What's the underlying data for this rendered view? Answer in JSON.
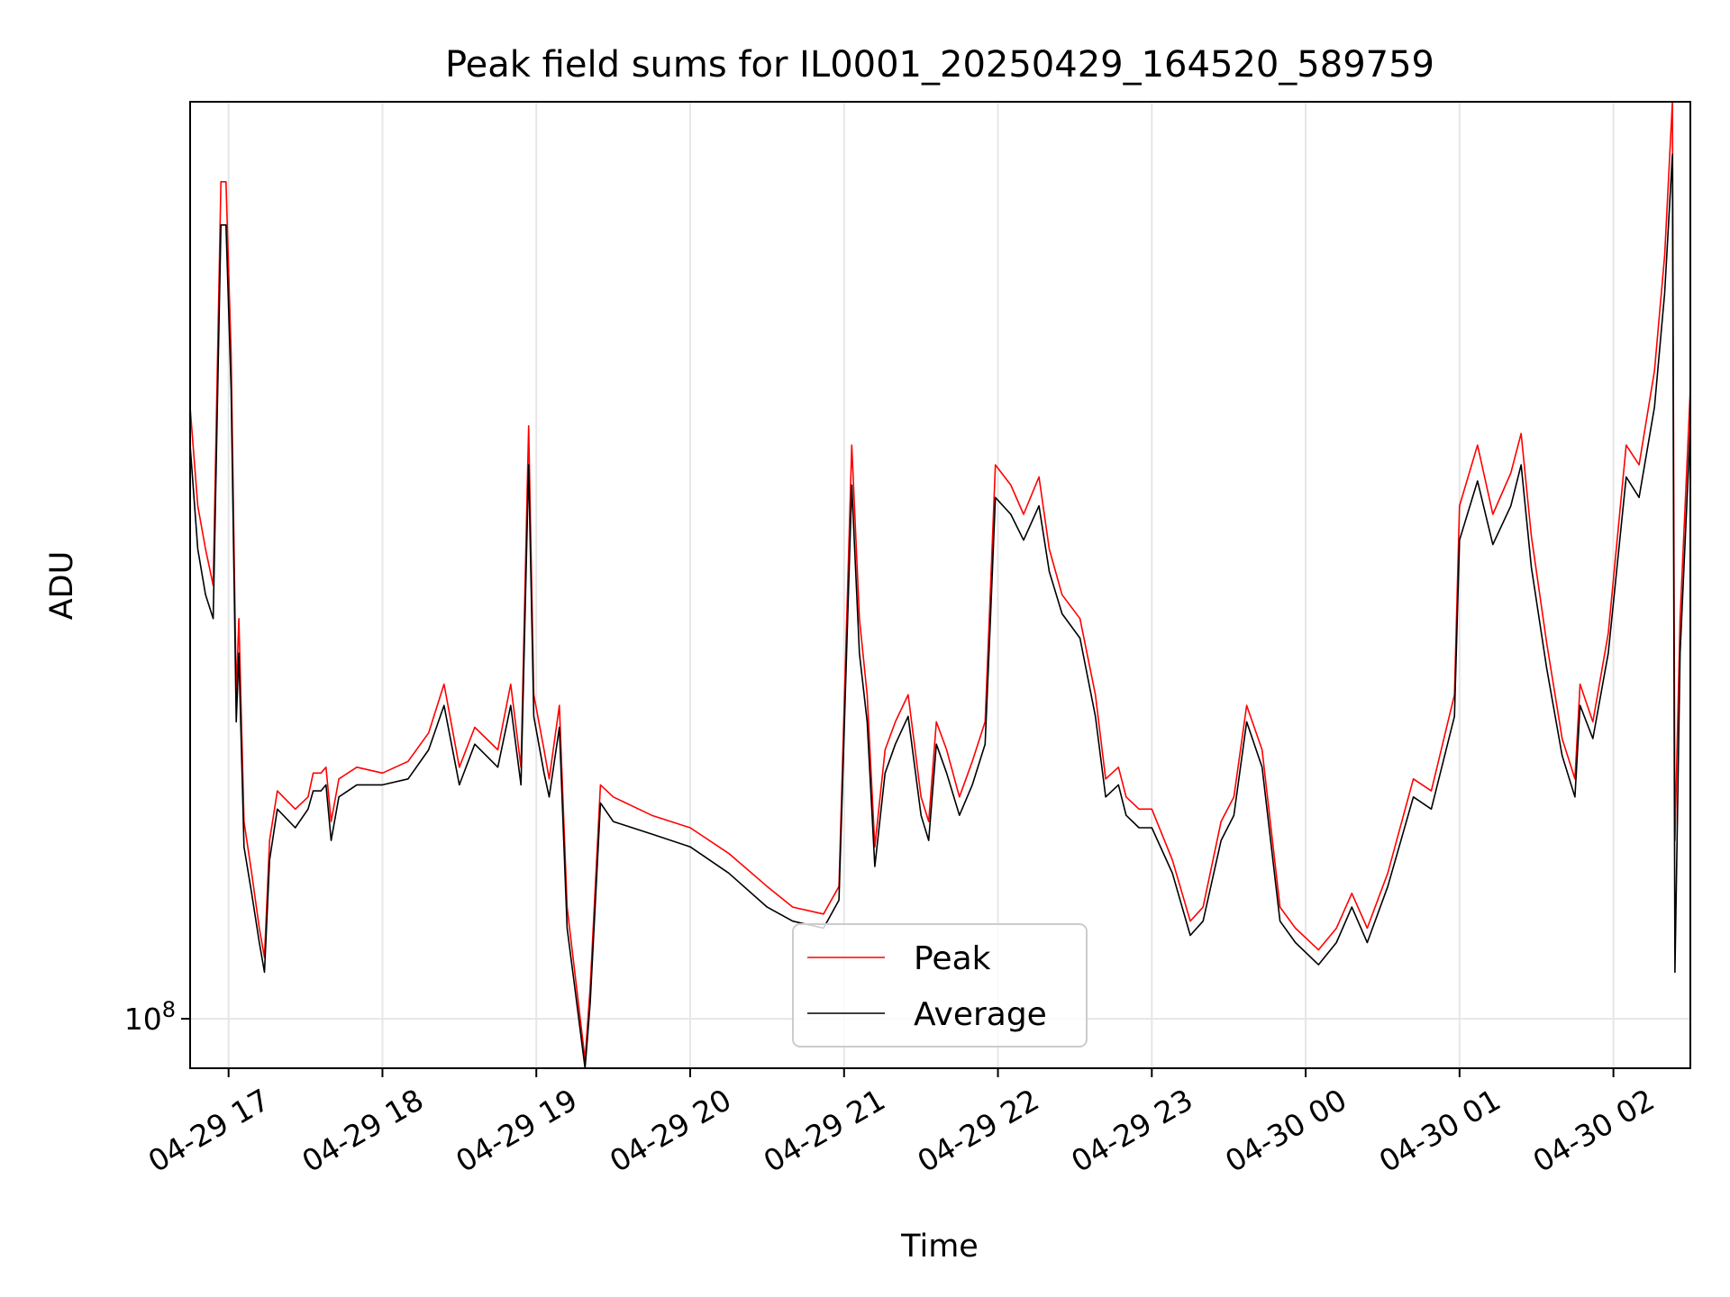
{
  "chart_data": {
    "type": "line",
    "title": "Peak field sums for IL0001_20250429_164520_589759",
    "xlabel": "Time",
    "ylabel": "ADU",
    "y_scale": "log",
    "y_tick": {
      "value": 100000000,
      "label_base": "10",
      "label_exp": "8"
    },
    "ylim": [
      94000000,
      315000000
    ],
    "xlim": [
      "2025-04-29 16:45",
      "2025-04-30 02:30"
    ],
    "x_ticks": [
      {
        "time": "2025-04-29 17:00",
        "label": "04-29 17"
      },
      {
        "time": "2025-04-29 18:00",
        "label": "04-29 18"
      },
      {
        "time": "2025-04-29 19:00",
        "label": "04-29 19"
      },
      {
        "time": "2025-04-29 20:00",
        "label": "04-29 20"
      },
      {
        "time": "2025-04-29 21:00",
        "label": "04-29 21"
      },
      {
        "time": "2025-04-29 22:00",
        "label": "04-29 22"
      },
      {
        "time": "2025-04-29 23:00",
        "label": "04-29 23"
      },
      {
        "time": "2025-04-30 00:00",
        "label": "04-30 00"
      },
      {
        "time": "2025-04-30 01:00",
        "label": "04-30 01"
      },
      {
        "time": "2025-04-30 02:00",
        "label": "04-30 02"
      }
    ],
    "grid": true,
    "legend_position": "lower-center",
    "series": [
      {
        "name": "Peak",
        "color": "#ff0000",
        "points": [
          [
            "2025-04-29 16:45",
            215000000
          ],
          [
            "2025-04-29 16:48",
            190000000
          ],
          [
            "2025-04-29 16:51",
            180000000
          ],
          [
            "2025-04-29 16:54",
            172000000
          ],
          [
            "2025-04-29 16:57",
            285000000
          ],
          [
            "2025-04-29 16:59",
            285000000
          ],
          [
            "2025-04-29 17:01",
            230000000
          ],
          [
            "2025-04-29 17:03",
            150000000
          ],
          [
            "2025-04-29 17:04",
            165000000
          ],
          [
            "2025-04-29 17:06",
            128000000
          ],
          [
            "2025-04-29 17:09",
            120000000
          ],
          [
            "2025-04-29 17:12",
            112000000
          ],
          [
            "2025-04-29 17:14",
            108000000
          ],
          [
            "2025-04-29 17:16",
            125000000
          ],
          [
            "2025-04-29 17:19",
            133000000
          ],
          [
            "2025-04-29 17:26",
            130000000
          ],
          [
            "2025-04-29 17:31",
            132000000
          ],
          [
            "2025-04-29 17:33",
            136000000
          ],
          [
            "2025-04-29 17:36",
            136000000
          ],
          [
            "2025-04-29 17:38",
            137000000
          ],
          [
            "2025-04-29 17:40",
            128000000
          ],
          [
            "2025-04-29 17:43",
            135000000
          ],
          [
            "2025-04-29 17:50",
            137000000
          ],
          [
            "2025-04-29 18:00",
            136000000
          ],
          [
            "2025-04-29 18:10",
            138000000
          ],
          [
            "2025-04-29 18:18",
            143000000
          ],
          [
            "2025-04-29 18:24",
            152000000
          ],
          [
            "2025-04-29 18:30",
            137000000
          ],
          [
            "2025-04-29 18:36",
            144000000
          ],
          [
            "2025-04-29 18:45",
            140000000
          ],
          [
            "2025-04-29 18:50",
            152000000
          ],
          [
            "2025-04-29 18:54",
            137000000
          ],
          [
            "2025-04-29 18:57",
            210000000
          ],
          [
            "2025-04-29 18:59",
            150000000
          ],
          [
            "2025-04-29 19:03",
            140000000
          ],
          [
            "2025-04-29 19:05",
            135000000
          ],
          [
            "2025-04-29 19:09",
            148000000
          ],
          [
            "2025-04-29 19:12",
            115000000
          ],
          [
            "2025-04-29 19:15",
            106000000
          ],
          [
            "2025-04-29 19:19",
            95000000
          ],
          [
            "2025-04-29 19:21",
            104000000
          ],
          [
            "2025-04-29 19:25",
            134000000
          ],
          [
            "2025-04-29 19:30",
            132000000
          ],
          [
            "2025-04-29 19:45",
            129000000
          ],
          [
            "2025-04-29 20:00",
            127000000
          ],
          [
            "2025-04-29 20:15",
            123000000
          ],
          [
            "2025-04-29 20:30",
            118000000
          ],
          [
            "2025-04-29 20:40",
            115000000
          ],
          [
            "2025-04-29 20:52",
            114000000
          ],
          [
            "2025-04-29 20:58",
            118000000
          ],
          [
            "2025-04-29 21:03",
            205000000
          ],
          [
            "2025-04-29 21:06",
            165000000
          ],
          [
            "2025-04-29 21:09",
            150000000
          ],
          [
            "2025-04-29 21:12",
            124000000
          ],
          [
            "2025-04-29 21:16",
            140000000
          ],
          [
            "2025-04-29 21:20",
            145000000
          ],
          [
            "2025-04-29 21:25",
            150000000
          ],
          [
            "2025-04-29 21:30",
            132000000
          ],
          [
            "2025-04-29 21:33",
            128000000
          ],
          [
            "2025-04-29 21:36",
            145000000
          ],
          [
            "2025-04-29 21:40",
            140000000
          ],
          [
            "2025-04-29 21:45",
            132000000
          ],
          [
            "2025-04-29 21:50",
            138000000
          ],
          [
            "2025-04-29 21:55",
            145000000
          ],
          [
            "2025-04-29 21:57",
            170000000
          ],
          [
            "2025-04-29 21:59",
            200000000
          ],
          [
            "2025-04-29 22:05",
            195000000
          ],
          [
            "2025-04-29 22:10",
            188000000
          ],
          [
            "2025-04-29 22:16",
            197000000
          ],
          [
            "2025-04-29 22:20",
            180000000
          ],
          [
            "2025-04-29 22:25",
            170000000
          ],
          [
            "2025-04-29 22:32",
            165000000
          ],
          [
            "2025-04-29 22:38",
            150000000
          ],
          [
            "2025-04-29 22:42",
            135000000
          ],
          [
            "2025-04-29 22:47",
            137000000
          ],
          [
            "2025-04-29 22:50",
            132000000
          ],
          [
            "2025-04-29 22:55",
            130000000
          ],
          [
            "2025-04-29 23:00",
            130000000
          ],
          [
            "2025-04-29 23:08",
            122000000
          ],
          [
            "2025-04-29 23:15",
            113000000
          ],
          [
            "2025-04-29 23:20",
            115000000
          ],
          [
            "2025-04-29 23:27",
            128000000
          ],
          [
            "2025-04-29 23:32",
            132000000
          ],
          [
            "2025-04-29 23:37",
            148000000
          ],
          [
            "2025-04-29 23:43",
            140000000
          ],
          [
            "2025-04-29 23:50",
            115000000
          ],
          [
            "2025-04-29 23:56",
            112000000
          ],
          [
            "2025-04-30 00:05",
            109000000
          ],
          [
            "2025-04-30 00:12",
            112000000
          ],
          [
            "2025-04-30 00:18",
            117000000
          ],
          [
            "2025-04-30 00:24",
            112000000
          ],
          [
            "2025-04-30 00:32",
            120000000
          ],
          [
            "2025-04-30 00:42",
            135000000
          ],
          [
            "2025-04-30 00:49",
            133000000
          ],
          [
            "2025-04-30 00:58",
            150000000
          ],
          [
            "2025-04-30 01:00",
            190000000
          ],
          [
            "2025-04-30 01:07",
            205000000
          ],
          [
            "2025-04-30 01:13",
            188000000
          ],
          [
            "2025-04-30 01:20",
            198000000
          ],
          [
            "2025-04-30 01:24",
            208000000
          ],
          [
            "2025-04-30 01:28",
            183000000
          ],
          [
            "2025-04-30 01:34",
            160000000
          ],
          [
            "2025-04-30 01:40",
            142000000
          ],
          [
            "2025-04-30 01:45",
            135000000
          ],
          [
            "2025-04-30 01:47",
            152000000
          ],
          [
            "2025-04-30 01:52",
            145000000
          ],
          [
            "2025-04-30 01:58",
            162000000
          ],
          [
            "2025-04-30 02:05",
            205000000
          ],
          [
            "2025-04-30 02:10",
            200000000
          ],
          [
            "2025-04-30 02:16",
            225000000
          ],
          [
            "2025-04-30 02:20",
            260000000
          ],
          [
            "2025-04-30 02:23",
            315000000
          ],
          [
            "2025-04-30 02:24",
            125000000
          ],
          [
            "2025-04-30 02:26",
            165000000
          ],
          [
            "2025-04-30 02:30",
            220000000
          ]
        ]
      },
      {
        "name": "Average",
        "color": "#000000",
        "points": [
          [
            "2025-04-29 16:45",
            205000000
          ],
          [
            "2025-04-29 16:48",
            180000000
          ],
          [
            "2025-04-29 16:51",
            170000000
          ],
          [
            "2025-04-29 16:54",
            165000000
          ],
          [
            "2025-04-29 16:57",
            270000000
          ],
          [
            "2025-04-29 16:59",
            270000000
          ],
          [
            "2025-04-29 17:01",
            220000000
          ],
          [
            "2025-04-29 17:03",
            145000000
          ],
          [
            "2025-04-29 17:04",
            158000000
          ],
          [
            "2025-04-29 17:06",
            124000000
          ],
          [
            "2025-04-29 17:09",
            117000000
          ],
          [
            "2025-04-29 17:12",
            110000000
          ],
          [
            "2025-04-29 17:14",
            106000000
          ],
          [
            "2025-04-29 17:16",
            122000000
          ],
          [
            "2025-04-29 17:19",
            130000000
          ],
          [
            "2025-04-29 17:26",
            127000000
          ],
          [
            "2025-04-29 17:31",
            130000000
          ],
          [
            "2025-04-29 17:33",
            133000000
          ],
          [
            "2025-04-29 17:36",
            133000000
          ],
          [
            "2025-04-29 17:38",
            134000000
          ],
          [
            "2025-04-29 17:40",
            125000000
          ],
          [
            "2025-04-29 17:43",
            132000000
          ],
          [
            "2025-04-29 17:50",
            134000000
          ],
          [
            "2025-04-29 18:00",
            134000000
          ],
          [
            "2025-04-29 18:10",
            135000000
          ],
          [
            "2025-04-29 18:18",
            140000000
          ],
          [
            "2025-04-29 18:24",
            148000000
          ],
          [
            "2025-04-29 18:30",
            134000000
          ],
          [
            "2025-04-29 18:36",
            141000000
          ],
          [
            "2025-04-29 18:45",
            137000000
          ],
          [
            "2025-04-29 18:50",
            148000000
          ],
          [
            "2025-04-29 18:54",
            134000000
          ],
          [
            "2025-04-29 18:57",
            200000000
          ],
          [
            "2025-04-29 18:59",
            146000000
          ],
          [
            "2025-04-29 19:03",
            136000000
          ],
          [
            "2025-04-29 19:05",
            132000000
          ],
          [
            "2025-04-29 19:09",
            144000000
          ],
          [
            "2025-04-29 19:12",
            112000000
          ],
          [
            "2025-04-29 19:15",
            104000000
          ],
          [
            "2025-04-29 19:19",
            94000000
          ],
          [
            "2025-04-29 19:21",
            102000000
          ],
          [
            "2025-04-29 19:25",
            131000000
          ],
          [
            "2025-04-29 19:30",
            128000000
          ],
          [
            "2025-04-29 19:45",
            126000000
          ],
          [
            "2025-04-29 20:00",
            124000000
          ],
          [
            "2025-04-29 20:15",
            120000000
          ],
          [
            "2025-04-29 20:30",
            115000000
          ],
          [
            "2025-04-29 20:40",
            113000000
          ],
          [
            "2025-04-29 20:52",
            112000000
          ],
          [
            "2025-04-29 20:58",
            116000000
          ],
          [
            "2025-04-29 21:03",
            195000000
          ],
          [
            "2025-04-29 21:06",
            158000000
          ],
          [
            "2025-04-29 21:09",
            145000000
          ],
          [
            "2025-04-29 21:12",
            121000000
          ],
          [
            "2025-04-29 21:16",
            136000000
          ],
          [
            "2025-04-29 21:20",
            141000000
          ],
          [
            "2025-04-29 21:25",
            146000000
          ],
          [
            "2025-04-29 21:30",
            129000000
          ],
          [
            "2025-04-29 21:33",
            125000000
          ],
          [
            "2025-04-29 21:36",
            141000000
          ],
          [
            "2025-04-29 21:40",
            136000000
          ],
          [
            "2025-04-29 21:45",
            129000000
          ],
          [
            "2025-04-29 21:50",
            134000000
          ],
          [
            "2025-04-29 21:55",
            141000000
          ],
          [
            "2025-04-29 21:57",
            164000000
          ],
          [
            "2025-04-29 21:59",
            192000000
          ],
          [
            "2025-04-29 22:05",
            188000000
          ],
          [
            "2025-04-29 22:10",
            182000000
          ],
          [
            "2025-04-29 22:16",
            190000000
          ],
          [
            "2025-04-29 22:20",
            175000000
          ],
          [
            "2025-04-29 22:25",
            166000000
          ],
          [
            "2025-04-29 22:32",
            161000000
          ],
          [
            "2025-04-29 22:38",
            146000000
          ],
          [
            "2025-04-29 22:42",
            132000000
          ],
          [
            "2025-04-29 22:47",
            134000000
          ],
          [
            "2025-04-29 22:50",
            129000000
          ],
          [
            "2025-04-29 22:55",
            127000000
          ],
          [
            "2025-04-29 23:00",
            127000000
          ],
          [
            "2025-04-29 23:08",
            120000000
          ],
          [
            "2025-04-29 23:15",
            111000000
          ],
          [
            "2025-04-29 23:20",
            113000000
          ],
          [
            "2025-04-29 23:27",
            125000000
          ],
          [
            "2025-04-29 23:32",
            129000000
          ],
          [
            "2025-04-29 23:37",
            145000000
          ],
          [
            "2025-04-29 23:43",
            137000000
          ],
          [
            "2025-04-29 23:50",
            113000000
          ],
          [
            "2025-04-29 23:56",
            110000000
          ],
          [
            "2025-04-30 00:05",
            107000000
          ],
          [
            "2025-04-30 00:12",
            110000000
          ],
          [
            "2025-04-30 00:18",
            115000000
          ],
          [
            "2025-04-30 00:24",
            110000000
          ],
          [
            "2025-04-30 00:32",
            118000000
          ],
          [
            "2025-04-30 00:42",
            132000000
          ],
          [
            "2025-04-30 00:49",
            130000000
          ],
          [
            "2025-04-30 00:58",
            146000000
          ],
          [
            "2025-04-30 01:00",
            182000000
          ],
          [
            "2025-04-30 01:07",
            196000000
          ],
          [
            "2025-04-30 01:13",
            181000000
          ],
          [
            "2025-04-30 01:20",
            190000000
          ],
          [
            "2025-04-30 01:24",
            200000000
          ],
          [
            "2025-04-30 01:28",
            176000000
          ],
          [
            "2025-04-30 01:34",
            155000000
          ],
          [
            "2025-04-30 01:40",
            139000000
          ],
          [
            "2025-04-30 01:45",
            132000000
          ],
          [
            "2025-04-30 01:47",
            148000000
          ],
          [
            "2025-04-30 01:52",
            142000000
          ],
          [
            "2025-04-30 01:58",
            158000000
          ],
          [
            "2025-04-30 02:05",
            197000000
          ],
          [
            "2025-04-30 02:10",
            192000000
          ],
          [
            "2025-04-30 02:16",
            215000000
          ],
          [
            "2025-04-30 02:20",
            248000000
          ],
          [
            "2025-04-30 02:23",
            295000000
          ],
          [
            "2025-04-30 02:24",
            106000000
          ],
          [
            "2025-04-30 02:26",
            158000000
          ],
          [
            "2025-04-30 02:30",
            210000000
          ]
        ]
      }
    ]
  }
}
